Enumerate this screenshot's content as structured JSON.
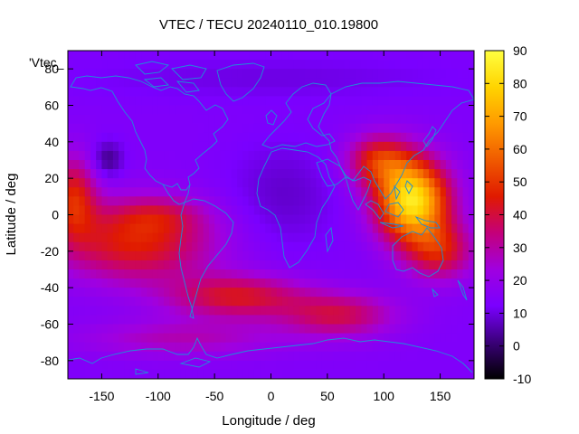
{
  "chart_data": {
    "type": "heatmap",
    "title": "VTEC / TECU 20240110_010.19800",
    "xlabel": "Longitude / deg",
    "ylabel": "Latitude / deg",
    "xlim": [
      -180,
      180
    ],
    "ylim": [
      -90,
      90
    ],
    "xticks": [
      -150,
      -100,
      -50,
      0,
      50,
      100,
      150
    ],
    "yticks": [
      -80,
      -60,
      -40,
      -20,
      0,
      20,
      40,
      60,
      80
    ],
    "colorbar": {
      "range": [
        -10,
        90
      ],
      "ticks": [
        -10,
        0,
        10,
        20,
        30,
        40,
        50,
        60,
        70,
        80,
        90
      ],
      "palette": [
        "#000000",
        "#3a0078",
        "#7a00ff",
        "#a000e0",
        "#c4007a",
        "#e01a00",
        "#f05a00",
        "#ff9a00",
        "#ffd400",
        "#ffff40"
      ]
    },
    "legend": {
      "label": "'Vtec_",
      "placement": "top-left"
    },
    "features": [
      {
        "name": "equatorial anomaly peak",
        "lon": 125,
        "lat": 5,
        "value": 85
      },
      {
        "name": "south Pacific band",
        "lon": -130,
        "lat": -25,
        "value": 45
      },
      {
        "name": "Atlantic southern band",
        "lon": -20,
        "lat": -45,
        "value": 42
      },
      {
        "name": "north Pacific minimum",
        "lon": -145,
        "lat": 30,
        "value": 2
      },
      {
        "name": "northern polar region",
        "lon": 0,
        "lat": 75,
        "value": 14
      }
    ]
  },
  "colors": {
    "coastline": "#1e8fd6",
    "frame": "#000000",
    "background": "#ffffff"
  }
}
